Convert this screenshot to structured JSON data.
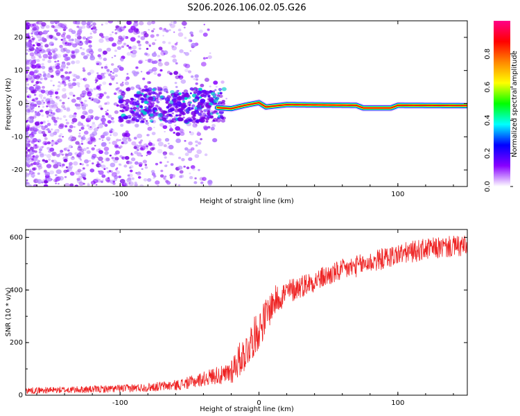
{
  "title": "S206.2026.106.02.05.G26",
  "chart_data": [
    {
      "type": "heatmap",
      "title": "S206.2026.106.02.05.G26",
      "xlabel": "Height of straight line (km)",
      "ylabel": "Frequency (Hz)",
      "xlim": [
        -168,
        150
      ],
      "ylim": [
        -25,
        25
      ],
      "x_ticks": [
        "-100",
        "0",
        "100"
      ],
      "y_ticks": [
        "-20",
        "-10",
        "0",
        "10",
        "20"
      ],
      "colorbar": {
        "label": "Normalized spectral amplitude",
        "range": [
          0,
          1
        ],
        "ticks": [
          "0.0",
          "0.2",
          "0.4",
          "0.6",
          "0.8"
        ],
        "colors": [
          "#ffffff",
          "#8800ff",
          "#0000ff",
          "#00ffff",
          "#00ff00",
          "#ffff00",
          "#ff8800",
          "#ff0000",
          "#ff0088"
        ]
      },
      "ridge": [
        {
          "x": -30,
          "freq": -1.2
        },
        {
          "x": -20,
          "freq": -1.5
        },
        {
          "x": -10,
          "freq": -0.5
        },
        {
          "x": 0,
          "freq": 0.3
        },
        {
          "x": 5,
          "freq": -1.0
        },
        {
          "x": 20,
          "freq": -0.3
        },
        {
          "x": 70,
          "freq": -0.5
        },
        {
          "x": 75,
          "freq": -1.3
        },
        {
          "x": 95,
          "freq": -1.3
        },
        {
          "x": 100,
          "freq": -0.5
        },
        {
          "x": 150,
          "freq": -0.6
        }
      ],
      "grid": false
    },
    {
      "type": "line",
      "xlabel": "Height of straight line (km)",
      "ylabel": "SNR (10 * v/v)",
      "xlim": [
        -168,
        150
      ],
      "ylim": [
        0,
        630
      ],
      "x_ticks": [
        "-100",
        "0",
        "100"
      ],
      "y_ticks": [
        "0",
        "200",
        "400",
        "600"
      ],
      "series": [
        {
          "color": "#ee2222",
          "x": [
            -168,
            -140,
            -120,
            -100,
            -80,
            -60,
            -50,
            -40,
            -30,
            -25,
            -20,
            -15,
            -10,
            -5,
            0,
            5,
            10,
            15,
            20,
            30,
            40,
            50,
            60,
            70,
            80,
            90,
            100,
            110,
            120,
            130,
            140,
            150
          ],
          "y": [
            18,
            20,
            22,
            25,
            30,
            38,
            48,
            62,
            78,
            70,
            95,
            130,
            160,
            210,
            250,
            300,
            350,
            375,
            390,
            415,
            435,
            455,
            475,
            490,
            505,
            520,
            535,
            545,
            555,
            560,
            565,
            565
          ],
          "noise": [
            12,
            13,
            14,
            15,
            17,
            20,
            24,
            28,
            35,
            40,
            55,
            65,
            70,
            75,
            75,
            70,
            60,
            55,
            50,
            45,
            42,
            42,
            42,
            42,
            42,
            42,
            42,
            42,
            42,
            42,
            42,
            42
          ]
        }
      ],
      "grid": false
    }
  ]
}
